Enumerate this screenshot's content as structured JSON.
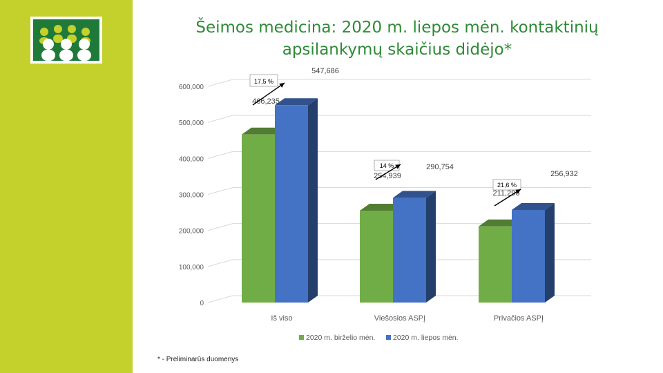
{
  "slide": {
    "title_line1": "Šeimos medicina: 2020 m. liepos mėn. kontaktinių",
    "title_line2": "apsilankymų skaičius didėjo*",
    "footnote": "* - Preliminarūs duomenys",
    "logo_icon": "family-group-icon",
    "sidebar_color": "#c4d02c"
  },
  "chart_data": {
    "type": "bar",
    "style": "3d-clustered-column",
    "categories": [
      "Iš viso",
      "Viešosios ASPĮ",
      "Privačios ASPĮ"
    ],
    "series": [
      {
        "name": "2020 m. birželio mėn.",
        "color": "#70ad47",
        "values": [
          466235,
          254939,
          211296
        ],
        "labels": [
          "466,235",
          "254,939",
          "211,296"
        ]
      },
      {
        "name": "2020 m. liepos mėn.",
        "color": "#4472c4",
        "values": [
          547686,
          290754,
          256932
        ],
        "labels": [
          "547,686",
          "290,754",
          "256,932"
        ]
      }
    ],
    "growth_annotations": [
      "17,5 %",
      "14 %",
      "21,6 %"
    ],
    "y_ticks": [
      "0",
      "100,000",
      "200,000",
      "300,000",
      "400,000",
      "500,000",
      "600,000"
    ],
    "ylim": [
      0,
      600000
    ],
    "grid": true,
    "legend": "bottom"
  }
}
